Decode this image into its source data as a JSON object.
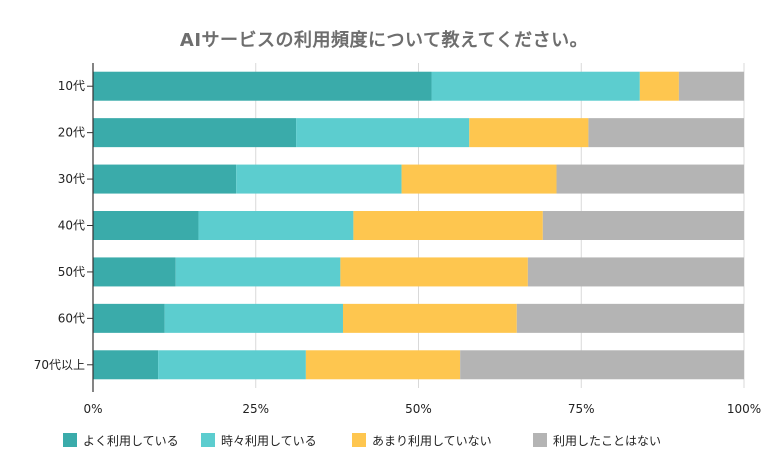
{
  "chart_data": {
    "type": "bar",
    "orientation": "horizontal",
    "stacked": "percent",
    "title": "AIサービスの利用頻度について教えてください。",
    "categories": [
      "10代",
      "20代",
      "30代",
      "40代",
      "50代",
      "60代",
      "70代以上"
    ],
    "series": [
      {
        "name": "よく利用している",
        "color": "#3aabaa",
        "values": [
          52.0,
          31.2,
          22.0,
          16.2,
          12.7,
          11.0,
          10.0
        ]
      },
      {
        "name": "時々利用している",
        "color": "#5ccdcf",
        "values": [
          32.0,
          26.6,
          25.4,
          23.8,
          25.3,
          27.4,
          22.7
        ]
      },
      {
        "name": "あまり利用していない",
        "color": "#fec64f",
        "values": [
          6.0,
          18.3,
          23.8,
          29.1,
          28.8,
          26.7,
          23.7
        ]
      },
      {
        "name": "利用したことはない",
        "color": "#b4b4b4",
        "values": [
          10.0,
          23.9,
          28.8,
          30.9,
          33.2,
          34.9,
          43.6
        ]
      }
    ],
    "x_ticks": [
      "0%",
      "25%",
      "50%",
      "75%",
      "100%"
    ],
    "xlim": [
      0,
      100
    ],
    "grid": true,
    "legend_position": "bottom"
  }
}
